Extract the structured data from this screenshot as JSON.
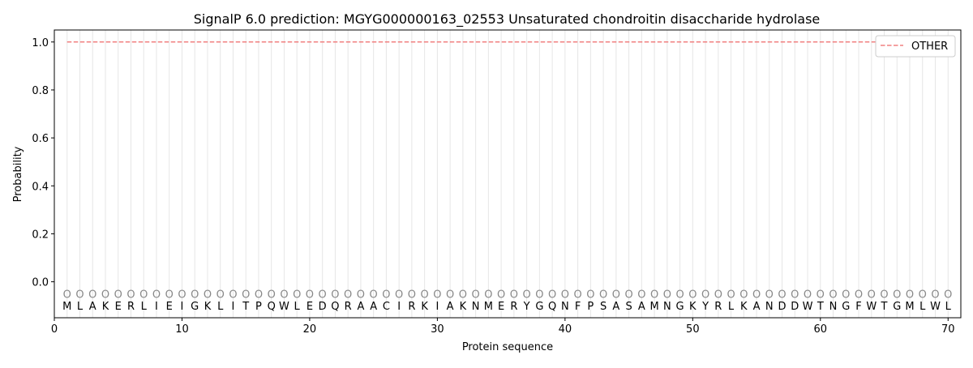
{
  "chart_data": {
    "type": "line",
    "title": "SignalP 6.0 prediction: MGYG000000163_02553 Unsaturated chondroitin disaccharide hydrolase",
    "xlabel": "Protein sequence",
    "ylabel": "Probability",
    "xlim": [
      0,
      71
    ],
    "ylim": [
      -0.15,
      1.05
    ],
    "xticks": [
      0,
      10,
      20,
      30,
      40,
      50,
      60,
      70
    ],
    "yticks": [
      0.0,
      0.2,
      0.4,
      0.6,
      0.8,
      1.0
    ],
    "ytick_labels": [
      "0.0",
      "0.2",
      "0.4",
      "0.6",
      "0.8",
      "1.0"
    ],
    "sequence": "MLAKERLIEIGKLITPQWLEDQRAACIRKIAKNMERYGQNFPSASAMNGKYRLKANDDWTNGFWTGMLWL",
    "region_label": "O",
    "series": [
      {
        "name": "OTHER",
        "color": "#f08080",
        "style": "dashed",
        "x_range": [
          1,
          70
        ],
        "value": 1.0
      }
    ],
    "legend_position": "top-right",
    "grid": "vertical lines at each residue"
  }
}
